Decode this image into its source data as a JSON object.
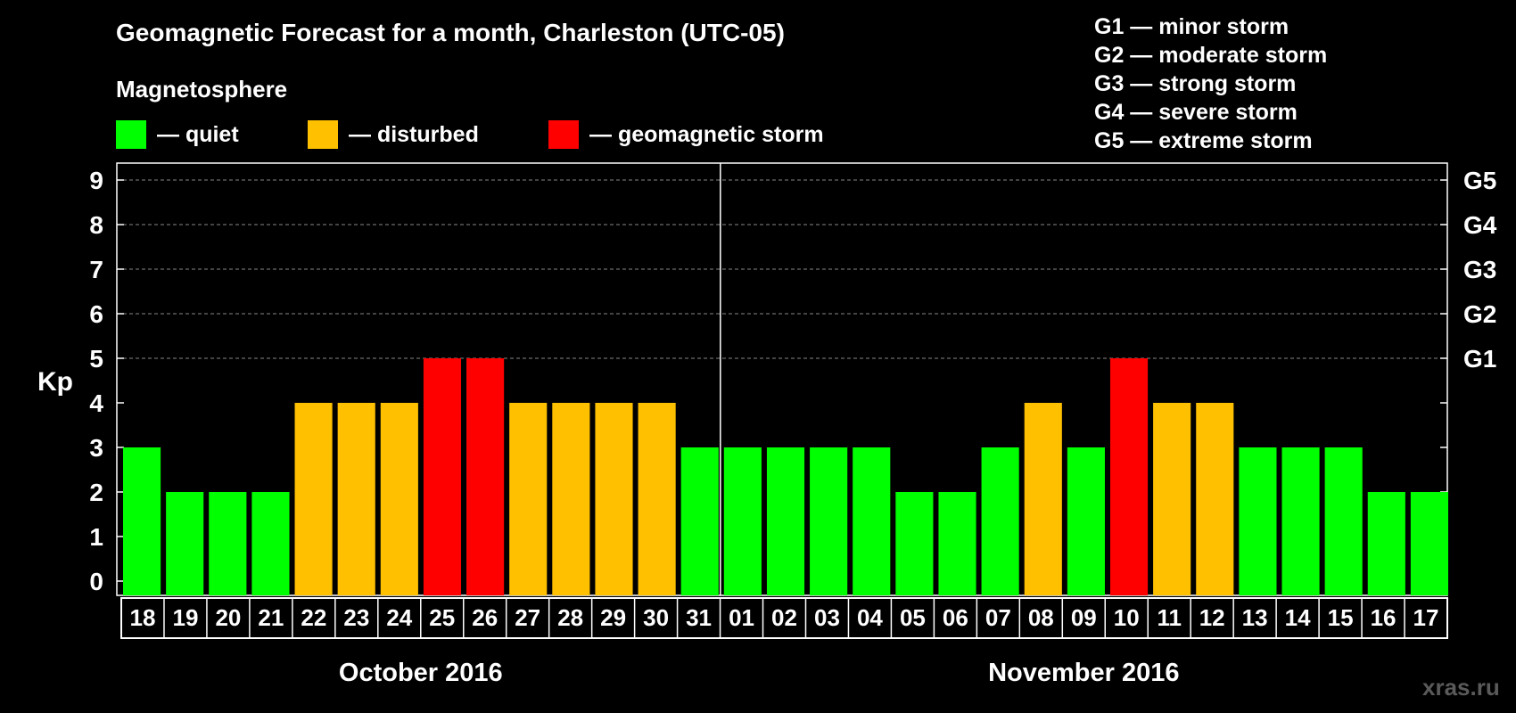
{
  "header": {
    "title": "Geomagnetic Forecast for a month, Charleston (UTC-05)",
    "section_label": "Magnetosphere"
  },
  "legend": [
    {
      "label": "— quiet",
      "color": "#00ff00"
    },
    {
      "label": "— disturbed",
      "color": "#ffc000"
    },
    {
      "label": "— geomagnetic storm",
      "color": "#ff0000"
    }
  ],
  "storm_levels": [
    "G1 — minor storm",
    "G2 — moderate storm",
    "G3 — strong storm",
    "G4 — severe storm",
    "G5 — extreme storm"
  ],
  "watermark": "xras.ru",
  "chart_data": {
    "type": "bar",
    "ylabel": "Kp",
    "ylim": [
      0,
      9
    ],
    "yticks": [
      "0",
      "1",
      "2",
      "3",
      "4",
      "5",
      "6",
      "7",
      "8",
      "9"
    ],
    "right_axis": [
      {
        "kp": 5,
        "label": "G1"
      },
      {
        "kp": 6,
        "label": "G2"
      },
      {
        "kp": 7,
        "label": "G3"
      },
      {
        "kp": 8,
        "label": "G4"
      },
      {
        "kp": 9,
        "label": "G5"
      }
    ],
    "grid": "dashed horizontal lines from Kp 5 to 9",
    "categories": [
      "18",
      "19",
      "20",
      "21",
      "22",
      "23",
      "24",
      "25",
      "26",
      "27",
      "28",
      "29",
      "30",
      "31",
      "01",
      "02",
      "03",
      "04",
      "05",
      "06",
      "07",
      "08",
      "09",
      "10",
      "11",
      "12",
      "13",
      "14",
      "15",
      "16",
      "17"
    ],
    "values": [
      3,
      2,
      2,
      2,
      4,
      4,
      4,
      5,
      5,
      4,
      4,
      4,
      4,
      3,
      3,
      3,
      3,
      3,
      2,
      2,
      3,
      4,
      3,
      5,
      4,
      4,
      3,
      3,
      3,
      2,
      2
    ],
    "colors": {
      "quiet": "#00ff00",
      "disturbed": "#ffc000",
      "storm": "#ff0000"
    },
    "months": [
      {
        "label": "October 2016",
        "days": 14
      },
      {
        "label": "November 2016",
        "days": 17
      }
    ]
  }
}
